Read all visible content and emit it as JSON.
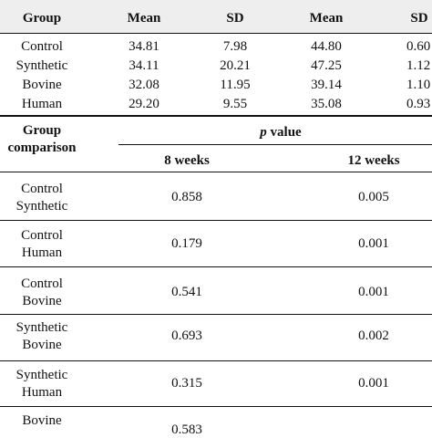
{
  "top_table": {
    "headers": [
      "Group",
      "Mean",
      "SD",
      "Mean",
      "SD"
    ],
    "rows": [
      {
        "group": "Control",
        "mean1": "34.81",
        "sd1": "7.98",
        "mean2": "44.80",
        "sd2": "0.60"
      },
      {
        "group": "Synthetic",
        "mean1": "34.11",
        "sd1": "20.21",
        "mean2": "47.25",
        "sd2": "1.12"
      },
      {
        "group": "Bovine",
        "mean1": "32.08",
        "sd1": "11.95",
        "mean2": "39.14",
        "sd2": "1.10"
      },
      {
        "group": "Human",
        "mean1": "29.20",
        "sd1": "9.55",
        "mean2": "35.08",
        "sd2": "0.93"
      }
    ]
  },
  "bottom_table": {
    "group_header_line1": "Group",
    "group_header_line2": "comparison",
    "pvalue_p": "p",
    "pvalue_rest": " value",
    "col_8": "8 weeks",
    "col_12": "12 weeks",
    "rows": [
      {
        "line1": "Control",
        "line2": "Synthetic",
        "w8": "0.858",
        "w12": "0.005"
      },
      {
        "line1": "Control",
        "line2": "Human",
        "w8": "0.179",
        "w12": "0.001"
      },
      {
        "line1": "Control",
        "line2": "Bovine",
        "w8": "0.541",
        "w12": "0.001"
      },
      {
        "line1": "Synthetic",
        "line2": "Bovine",
        "w8": "0.693",
        "w12": "0.002"
      },
      {
        "line1": "Synthetic",
        "line2": "Human",
        "w8": "0.315",
        "w12": "0.001"
      },
      {
        "line1": "Bovine",
        "line2": "",
        "w8": "0.583",
        "w12": ""
      }
    ]
  }
}
